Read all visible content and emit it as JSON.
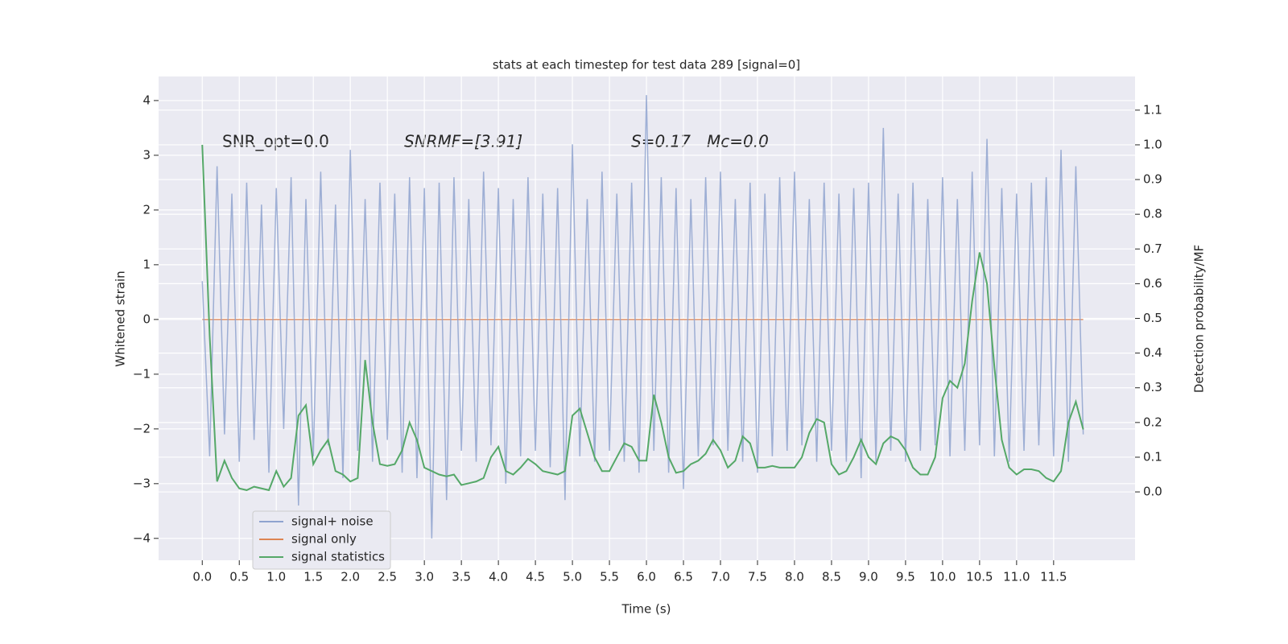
{
  "chart_data": {
    "type": "line",
    "title": "stats at each timestep for test data 289 [signal=0]",
    "xlabel": "Time (s)",
    "ylabel": "Whitened strain",
    "y2label": "Detection probability/MF",
    "annotations": [
      "SNR_opt=0.0",
      "SNRMF=[3.91]",
      "S=0.17",
      "Mc=0.0"
    ],
    "xlim": [
      -0.59,
      12.6
    ],
    "ylim": [
      -4.4,
      4.44
    ],
    "y2lim": [
      -0.197,
      1.197
    ],
    "xticks": [
      {
        "value": 0,
        "label": "0.0"
      },
      {
        "value": 0.5,
        "label": "0.5"
      },
      {
        "value": 1,
        "label": "1.0"
      },
      {
        "value": 1.5,
        "label": "1.5"
      },
      {
        "value": 2,
        "label": "2.0"
      },
      {
        "value": 2.5,
        "label": "2.5"
      },
      {
        "value": 3,
        "label": "3.0"
      },
      {
        "value": 3.5,
        "label": "3.5"
      },
      {
        "value": 4,
        "label": "4.0"
      },
      {
        "value": 4.5,
        "label": "4.5"
      },
      {
        "value": 5,
        "label": "5.0"
      },
      {
        "value": 5.5,
        "label": "5.5"
      },
      {
        "value": 6,
        "label": "6.0"
      },
      {
        "value": 6.5,
        "label": "6.5"
      },
      {
        "value": 7,
        "label": "7.0"
      },
      {
        "value": 7.5,
        "label": "7.5"
      },
      {
        "value": 8,
        "label": "8.0"
      },
      {
        "value": 8.5,
        "label": "8.5"
      },
      {
        "value": 9,
        "label": "9.0"
      },
      {
        "value": 9.5,
        "label": "9.5"
      },
      {
        "value": 10,
        "label": "10.0"
      },
      {
        "value": 10.5,
        "label": "10.5"
      },
      {
        "value": 11,
        "label": "11.0"
      },
      {
        "value": 11.5,
        "label": "11.5"
      }
    ],
    "yticks": [
      {
        "value": -4,
        "label": "−4"
      },
      {
        "value": -3,
        "label": "−3"
      },
      {
        "value": -2,
        "label": "−2"
      },
      {
        "value": -1,
        "label": "−1"
      },
      0,
      1,
      2,
      3,
      4
    ],
    "y2ticks": [
      {
        "value": 0,
        "label": "0.0"
      },
      {
        "value": 0.1,
        "label": "0.1"
      },
      {
        "value": 0.2,
        "label": "0.2"
      },
      {
        "value": 0.3,
        "label": "0.3"
      },
      {
        "value": 0.4,
        "label": "0.4"
      },
      {
        "value": 0.5,
        "label": "0.5"
      },
      {
        "value": 0.6,
        "label": "0.6"
      },
      {
        "value": 0.7,
        "label": "0.7"
      },
      {
        "value": 0.8,
        "label": "0.8"
      },
      {
        "value": 0.9,
        "label": "0.9"
      },
      {
        "value": 1,
        "label": "1.0"
      },
      {
        "value": 1.1,
        "label": "1.1"
      }
    ],
    "grid": true,
    "legend": "lower left",
    "x": [
      0,
      0.1,
      0.2,
      0.3,
      0.4,
      0.5,
      0.6,
      0.7,
      0.8,
      0.9,
      1,
      1.1,
      1.2,
      1.3,
      1.4,
      1.5,
      1.6,
      1.7,
      1.8,
      1.9,
      2,
      2.1,
      2.2,
      2.3,
      2.4,
      2.5,
      2.6,
      2.7,
      2.8,
      2.9,
      3,
      3.1,
      3.2,
      3.3,
      3.4,
      3.5,
      3.6,
      3.7,
      3.8,
      3.9,
      4,
      4.1,
      4.2,
      4.3,
      4.4,
      4.5,
      4.6,
      4.7,
      4.8,
      4.9,
      5,
      5.1,
      5.2,
      5.3,
      5.4,
      5.5,
      5.6,
      5.7,
      5.8,
      5.9,
      6,
      6.1,
      6.2,
      6.3,
      6.4,
      6.5,
      6.6,
      6.7,
      6.8,
      6.9,
      7,
      7.1,
      7.2,
      7.3,
      7.4,
      7.5,
      7.6,
      7.7,
      7.8,
      7.9,
      8,
      8.1,
      8.2,
      8.3,
      8.4,
      8.5,
      8.6,
      8.7,
      8.8,
      8.9,
      9,
      9.1,
      9.2,
      9.3,
      9.4,
      9.5,
      9.6,
      9.7,
      9.8,
      9.9,
      10,
      10.1,
      10.2,
      10.3,
      10.4,
      10.5,
      10.6,
      10.7,
      10.8,
      10.9,
      11,
      11.1,
      11.2,
      11.3,
      11.4,
      11.5,
      11.6,
      11.7,
      11.8,
      11.9
    ],
    "series": [
      {
        "name": "signal+ noise",
        "color": "#8fa3cf",
        "axis": "y",
        "values": [
          0.7,
          -2.5,
          2.8,
          -2.1,
          2.3,
          -2.6,
          2.5,
          -2.2,
          2.1,
          -2.8,
          2.4,
          -2.0,
          2.6,
          -3.4,
          2.2,
          -2.5,
          2.7,
          -2.3,
          2.1,
          -2.9,
          3.1,
          -2.4,
          2.2,
          -2.6,
          2.5,
          -2.2,
          2.3,
          -2.8,
          2.6,
          -2.9,
          2.4,
          -4.0,
          2.5,
          -3.3,
          2.6,
          -2.4,
          2.2,
          -2.6,
          2.7,
          -2.3,
          2.4,
          -3.0,
          2.2,
          -2.5,
          2.6,
          -2.4,
          2.3,
          -2.7,
          2.4,
          -3.3,
          3.2,
          -2.5,
          2.2,
          -2.6,
          2.7,
          -2.4,
          2.3,
          -2.6,
          2.5,
          -2.8,
          4.1,
          -2.4,
          2.6,
          -2.8,
          2.4,
          -3.1,
          2.2,
          -2.5,
          2.6,
          -2.3,
          2.7,
          -2.4,
          2.2,
          -2.6,
          2.5,
          -2.8,
          2.3,
          -2.5,
          2.6,
          -2.4,
          2.7,
          -2.3,
          2.2,
          -2.6,
          2.5,
          -2.4,
          2.3,
          -2.6,
          2.4,
          -2.9,
          2.5,
          -2.6,
          3.5,
          -2.4,
          2.3,
          -2.6,
          2.5,
          -2.4,
          2.2,
          -2.3,
          2.6,
          -2.5,
          2.2,
          -2.4,
          2.7,
          -2.3,
          3.3,
          -2.5,
          2.4,
          -2.6,
          2.3,
          -2.4,
          2.5,
          -2.3,
          2.6,
          -2.5,
          3.1,
          -2.6,
          2.8,
          -2.1
        ]
      },
      {
        "name": "signal only",
        "color": "#dd8452",
        "axis": "y",
        "values": [
          0,
          0,
          0,
          0,
          0,
          0,
          0,
          0,
          0,
          0,
          0,
          0,
          0,
          0,
          0,
          0,
          0,
          0,
          0,
          0,
          0,
          0,
          0,
          0,
          0,
          0,
          0,
          0,
          0,
          0,
          0,
          0,
          0,
          0,
          0,
          0,
          0,
          0,
          0,
          0,
          0,
          0,
          0,
          0,
          0,
          0,
          0,
          0,
          0,
          0,
          0,
          0,
          0,
          0,
          0,
          0,
          0,
          0,
          0,
          0,
          0,
          0,
          0,
          0,
          0,
          0,
          0,
          0,
          0,
          0,
          0,
          0,
          0,
          0,
          0,
          0,
          0,
          0,
          0,
          0,
          0,
          0,
          0,
          0,
          0,
          0,
          0,
          0,
          0,
          0,
          0,
          0,
          0,
          0,
          0,
          0,
          0,
          0,
          0,
          0,
          0,
          0,
          0,
          0,
          0,
          0,
          0,
          0,
          0,
          0,
          0,
          0,
          0,
          0,
          0,
          0,
          0,
          0,
          0,
          0
        ]
      },
      {
        "name": "signal statistics",
        "color": "#55a868",
        "axis": "y2",
        "values": [
          1.0,
          0.45,
          0.03,
          0.09,
          0.04,
          0.01,
          0.005,
          0.015,
          0.01,
          0.005,
          0.06,
          0.015,
          0.04,
          0.22,
          0.25,
          0.08,
          0.12,
          0.15,
          0.06,
          0.05,
          0.03,
          0.04,
          0.38,
          0.2,
          0.08,
          0.075,
          0.08,
          0.12,
          0.2,
          0.15,
          0.07,
          0.06,
          0.05,
          0.045,
          0.05,
          0.02,
          0.025,
          0.03,
          0.04,
          0.1,
          0.13,
          0.06,
          0.05,
          0.07,
          0.095,
          0.08,
          0.06,
          0.055,
          0.05,
          0.06,
          0.22,
          0.24,
          0.17,
          0.1,
          0.06,
          0.06,
          0.1,
          0.14,
          0.13,
          0.09,
          0.09,
          0.28,
          0.2,
          0.1,
          0.055,
          0.06,
          0.08,
          0.09,
          0.11,
          0.15,
          0.12,
          0.07,
          0.09,
          0.16,
          0.14,
          0.07,
          0.07,
          0.075,
          0.07,
          0.07,
          0.07,
          0.1,
          0.17,
          0.21,
          0.2,
          0.08,
          0.05,
          0.06,
          0.1,
          0.15,
          0.1,
          0.08,
          0.14,
          0.16,
          0.15,
          0.12,
          0.07,
          0.05,
          0.05,
          0.1,
          0.27,
          0.32,
          0.3,
          0.37,
          0.55,
          0.69,
          0.6,
          0.36,
          0.15,
          0.07,
          0.05,
          0.065,
          0.065,
          0.06,
          0.04,
          0.03,
          0.06,
          0.2,
          0.26,
          0.18
        ]
      }
    ]
  }
}
